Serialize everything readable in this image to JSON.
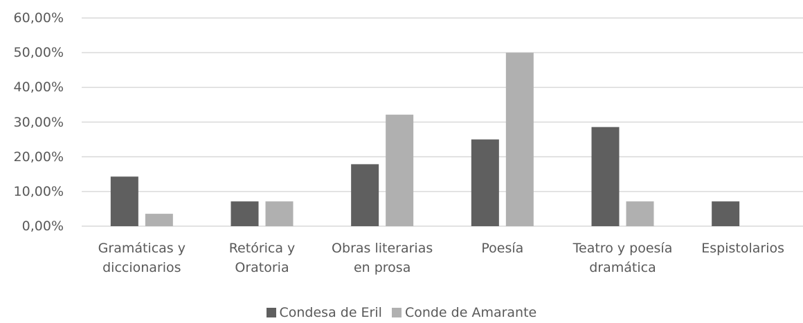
{
  "chart_data": {
    "type": "bar",
    "categories": [
      "Gramáticas y diccionarios",
      "Retórica y Oratoria",
      "Obras literarias en prosa",
      "Poesía",
      "Teatro y poesía dramática",
      "Espistolarios"
    ],
    "series": [
      {
        "name": "Condesa de Eril",
        "color": "#5f5f5f",
        "values": [
          14.29,
          7.14,
          17.86,
          25,
          28.57,
          7.14
        ]
      },
      {
        "name": "Conde de Amarante",
        "color": "#b0b0b0",
        "values": [
          3.57,
          7.14,
          32.14,
          50,
          7.14,
          0
        ]
      }
    ],
    "ylim": [
      0,
      60
    ],
    "yticks": [
      {
        "value": 0,
        "label": "0,00%"
      },
      {
        "value": 10,
        "label": "10,00%"
      },
      {
        "value": 20,
        "label": "20,00%"
      },
      {
        "value": 30,
        "label": "30,00%"
      },
      {
        "value": 40,
        "label": "40,00%"
      },
      {
        "value": 50,
        "label": "50,00%"
      },
      {
        "value": 60,
        "label": "60,00%"
      }
    ],
    "grid": true,
    "legend": "bottom"
  }
}
